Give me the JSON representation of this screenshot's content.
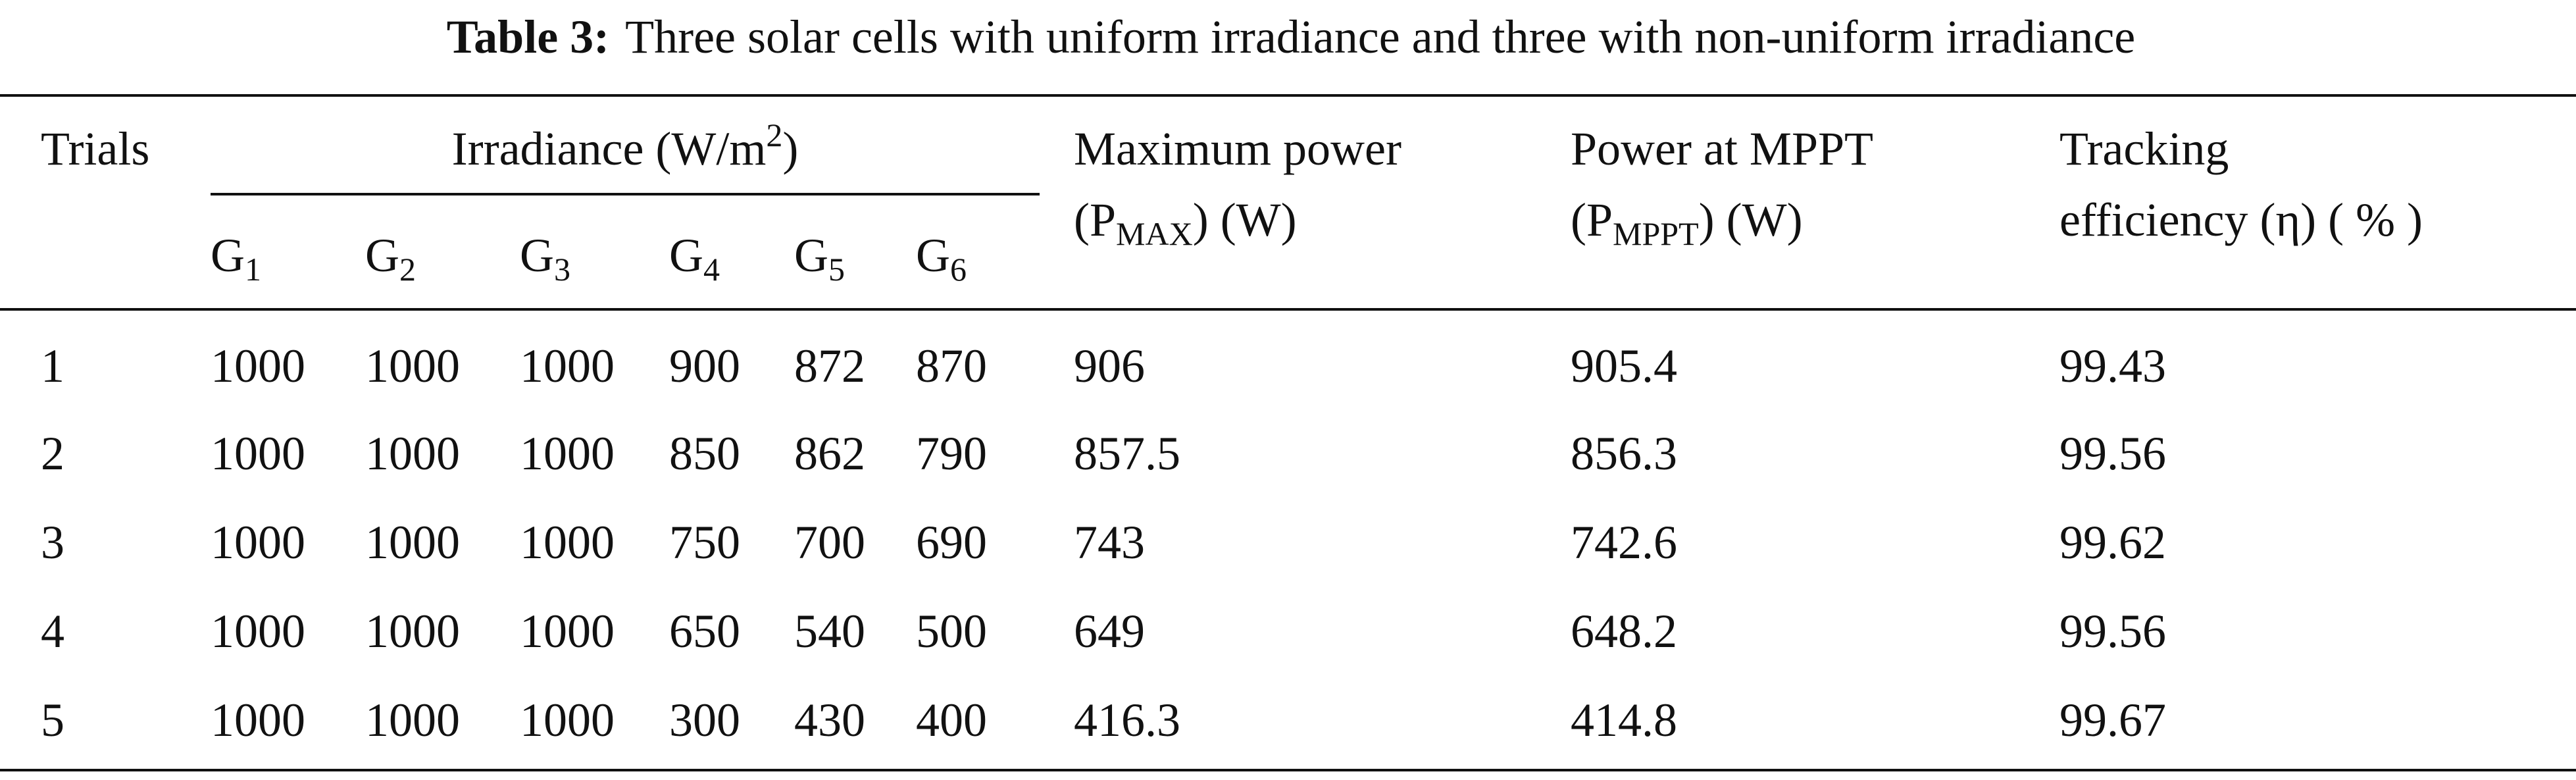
{
  "title": {
    "label": "Table 3:",
    "text": "Three solar cells with uniform irradiance and three with non-uniform irradiance"
  },
  "table": {
    "header": {
      "trials": "Trials",
      "irradiance": [
        "Irradiance (W/m",
        "2",
        ")"
      ],
      "g": [
        [
          "G",
          "1"
        ],
        [
          "G",
          "2"
        ],
        [
          "G",
          "3"
        ],
        [
          "G",
          "4"
        ],
        [
          "G",
          "5"
        ],
        [
          "G",
          "6"
        ]
      ],
      "max_power": [
        "Maximum power",
        "(P",
        "MAX",
        ") (W)"
      ],
      "power_mppt": [
        "Power at MPPT",
        "(P",
        "MPPT",
        ") (W)"
      ],
      "efficiency": [
        "Tracking",
        "efficiency (η) ( % )"
      ]
    },
    "rows": [
      [
        1,
        1000,
        1000,
        1000,
        900,
        872,
        870,
        906,
        905.4,
        99.43
      ],
      [
        2,
        1000,
        1000,
        1000,
        850,
        862,
        790,
        857.5,
        856.3,
        99.56
      ],
      [
        3,
        1000,
        1000,
        1000,
        750,
        700,
        690,
        743,
        742.6,
        99.62
      ],
      [
        4,
        1000,
        1000,
        1000,
        650,
        540,
        500,
        649,
        648.2,
        99.56
      ],
      [
        5,
        1000,
        1000,
        1000,
        300,
        430,
        400,
        416.3,
        414.8,
        99.67
      ]
    ]
  }
}
